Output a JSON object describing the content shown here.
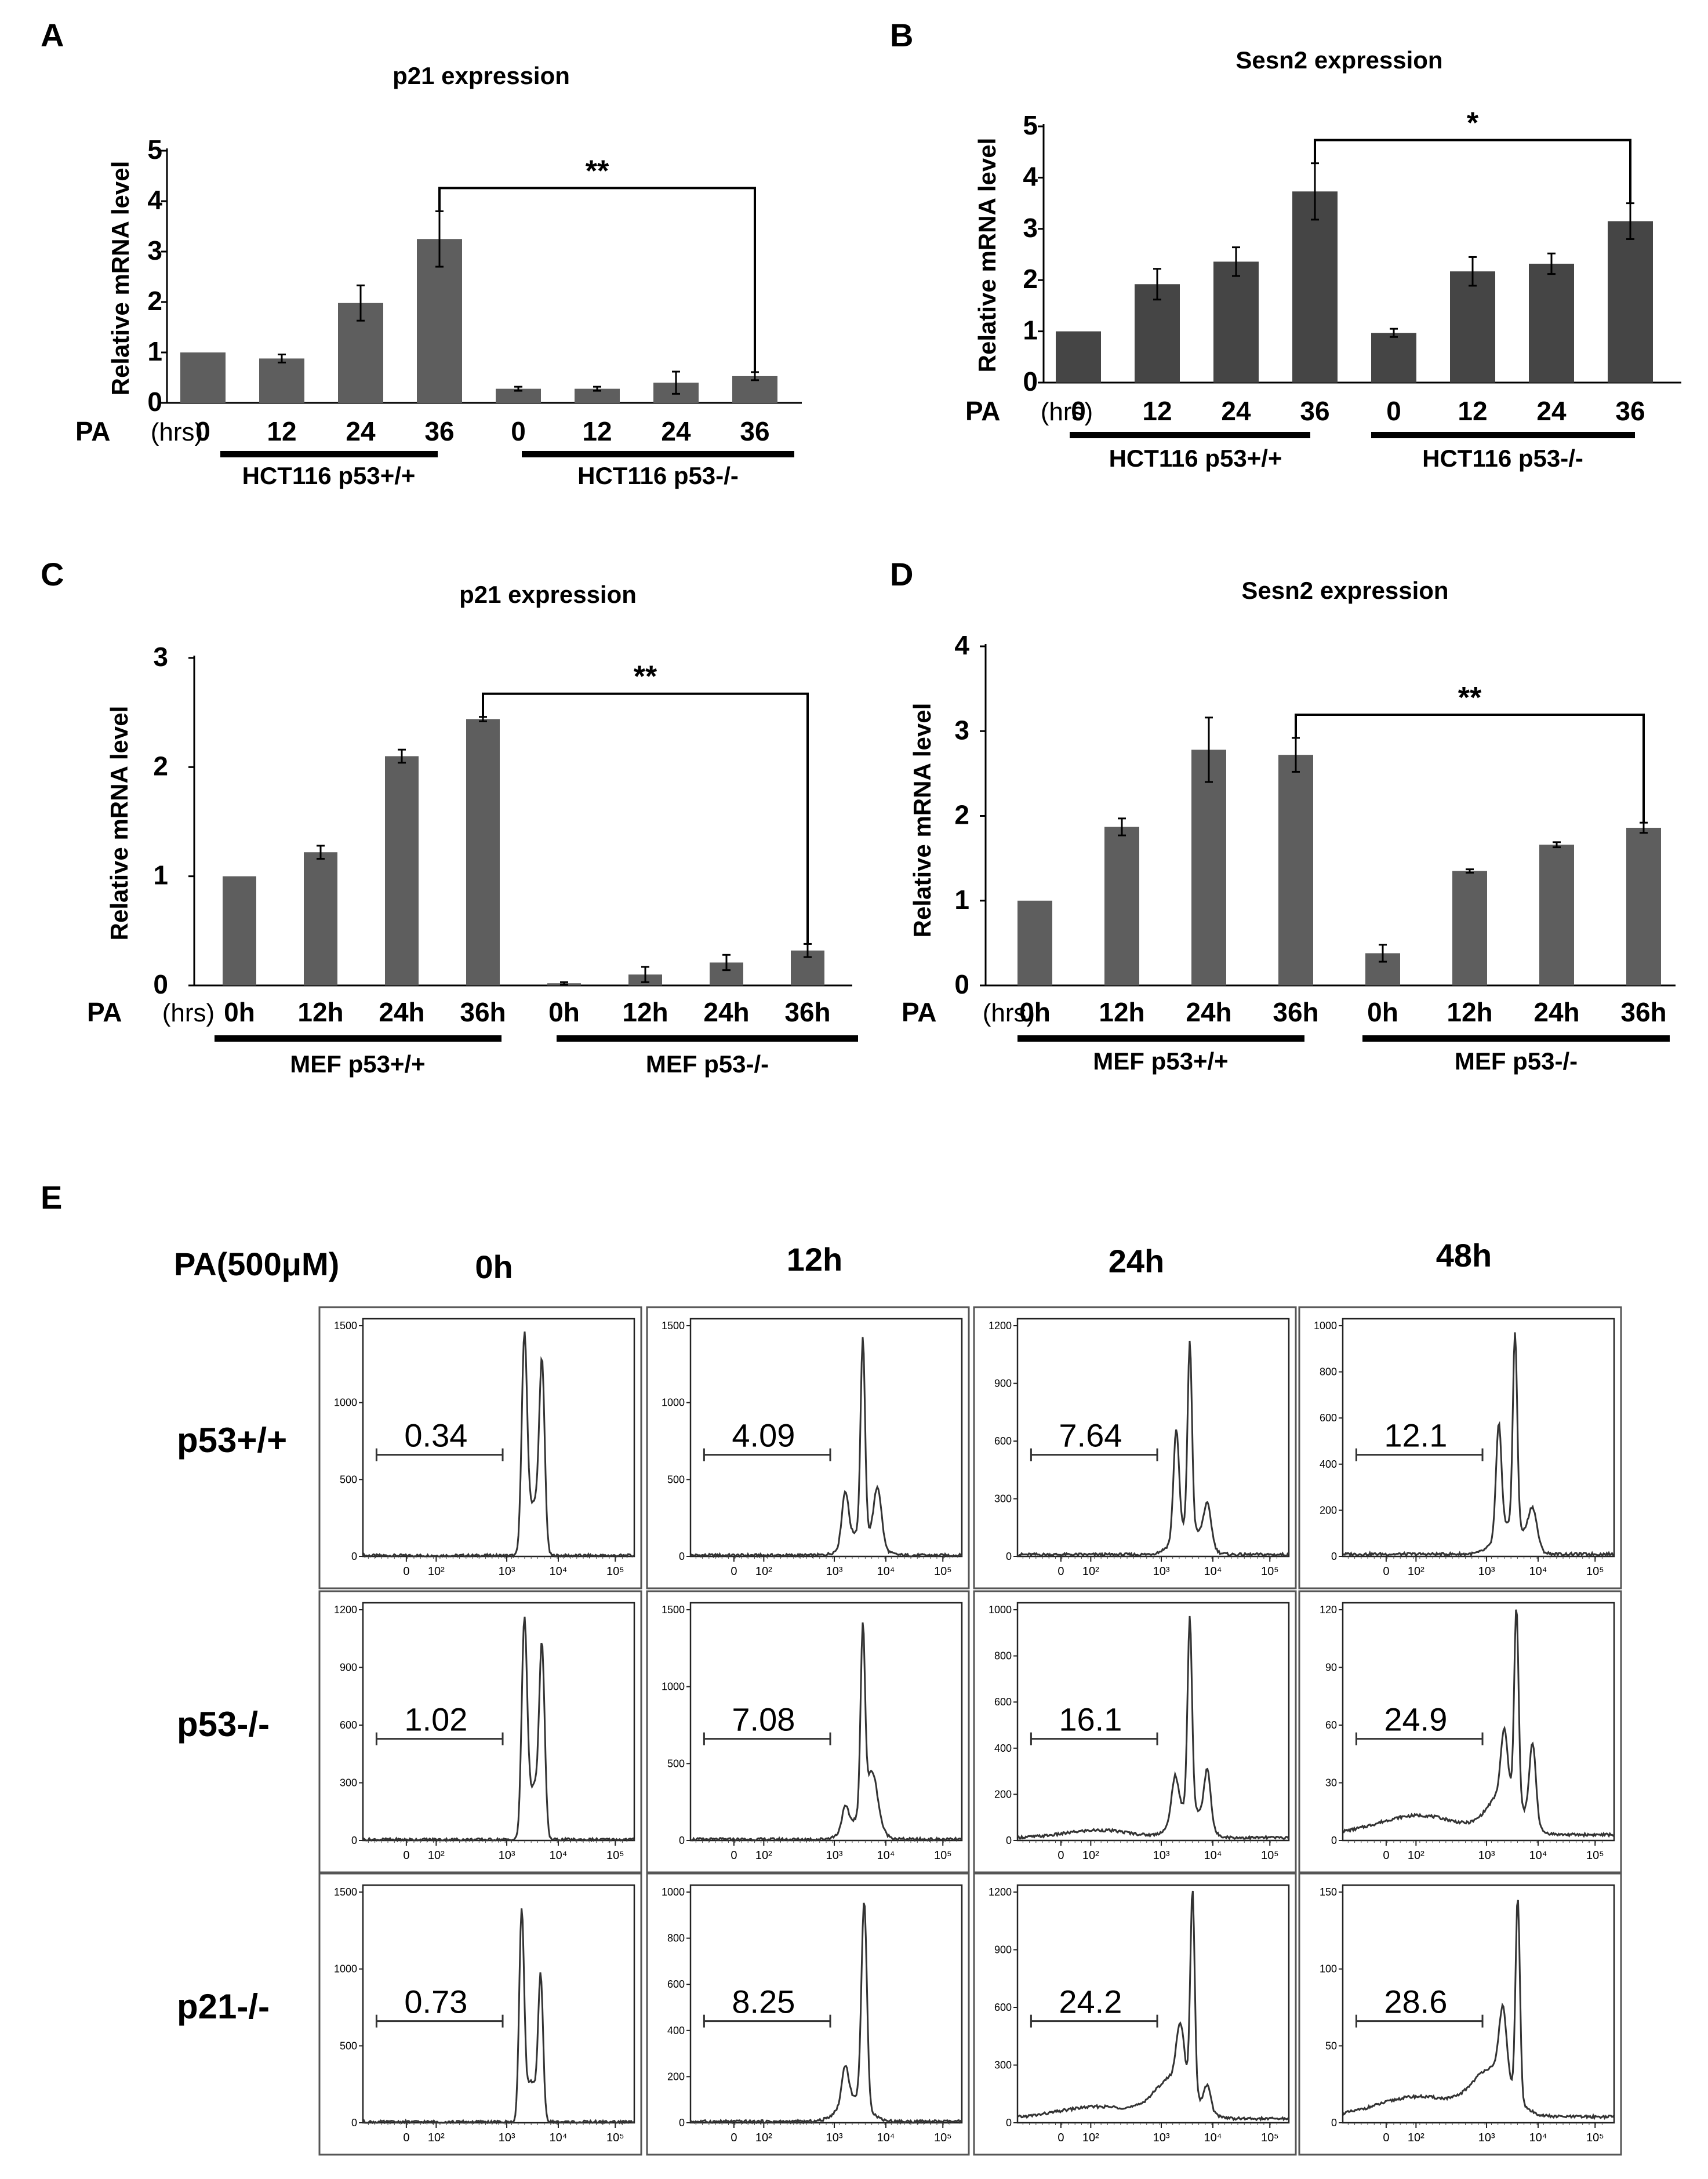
{
  "panel_letters": [
    "A",
    "B",
    "C",
    "D",
    "E"
  ],
  "colors": {
    "bar": "#5e5e5e",
    "bar_dark": "#454545",
    "ink": "#000000",
    "hist_line": "#333333"
  },
  "chart_data": [
    {
      "id": "A",
      "type": "bar",
      "title": "p21 expression",
      "ylabel": "Relative mRNA level",
      "ylim": [
        0,
        5
      ],
      "yticks": [
        "0",
        "1",
        "2",
        "3",
        "4",
        "5"
      ],
      "treatment_label": "PA",
      "unit_label": "(hrs)",
      "categories": [
        "0",
        "12",
        "24",
        "36",
        "0",
        "12",
        "24",
        "36"
      ],
      "groups": [
        "HCT116 p53+/+",
        "HCT116 p53-/-"
      ],
      "series": [
        {
          "name": "Relative mRNA level",
          "values": [
            1.0,
            0.88,
            1.98,
            3.25,
            0.28,
            0.28,
            0.4,
            0.53
          ],
          "errors": [
            0,
            0.08,
            0.35,
            0.55,
            0.04,
            0.04,
            0.22,
            0.08
          ]
        }
      ],
      "significance": {
        "label": "**",
        "from_index": 3,
        "to_index": 7
      }
    },
    {
      "id": "B",
      "type": "bar",
      "title": "Sesn2 expression",
      "ylabel": "Relative mRNA level",
      "ylim": [
        0,
        5
      ],
      "yticks": [
        "0",
        "1",
        "2",
        "3",
        "4",
        "5"
      ],
      "treatment_label": "PA",
      "unit_label": "(hrs)",
      "categories": [
        "0",
        "12",
        "24",
        "36",
        "0",
        "12",
        "24",
        "36"
      ],
      "groups": [
        "HCT116 p53+/+",
        "HCT116 p53-/-"
      ],
      "series": [
        {
          "name": "Relative mRNA level",
          "values": [
            1.0,
            1.92,
            2.36,
            3.73,
            0.97,
            2.17,
            2.32,
            3.15
          ],
          "errors": [
            0,
            0.3,
            0.28,
            0.55,
            0.08,
            0.28,
            0.2,
            0.35
          ]
        }
      ],
      "significance": {
        "label": "*",
        "from_index": 3,
        "to_index": 7
      }
    },
    {
      "id": "C",
      "type": "bar",
      "title": "p21 expression",
      "ylabel": "Relative mRNA level",
      "ylim": [
        0,
        3
      ],
      "yticks": [
        "0",
        "1",
        "2",
        "3"
      ],
      "treatment_label": "PA",
      "unit_label": "(hrs)",
      "categories": [
        "0h",
        "12h",
        "24h",
        "36h",
        "0h",
        "12h",
        "24h",
        "36h"
      ],
      "groups": [
        "MEF p53+/+",
        "MEF p53-/-"
      ],
      "series": [
        {
          "name": "Relative mRNA level",
          "values": [
            1.0,
            1.22,
            2.1,
            2.44,
            0.02,
            0.1,
            0.21,
            0.32
          ],
          "errors": [
            0,
            0.06,
            0.06,
            0.02,
            0.01,
            0.07,
            0.07,
            0.06
          ]
        }
      ],
      "significance": {
        "label": "**",
        "from_index": 3,
        "to_index": 7
      }
    },
    {
      "id": "D",
      "type": "bar",
      "title": "Sesn2 expression",
      "ylabel": "Relative mRNA level",
      "ylim": [
        0,
        4
      ],
      "yticks": [
        "0",
        "1",
        "2",
        "3",
        "4"
      ],
      "treatment_label": "PA",
      "unit_label": "(hrs)",
      "categories": [
        "0h",
        "12h",
        "24h",
        "36h",
        "0h",
        "12h",
        "24h",
        "36h"
      ],
      "groups": [
        "MEF p53+/+",
        "MEF p53-/-"
      ],
      "series": [
        {
          "name": "Relative mRNA level",
          "values": [
            1.0,
            1.87,
            2.78,
            2.72,
            0.38,
            1.35,
            1.66,
            1.86
          ],
          "errors": [
            0,
            0.1,
            0.38,
            0.2,
            0.1,
            0.02,
            0.03,
            0.06
          ]
        }
      ],
      "significance": {
        "label": "**",
        "from_index": 3,
        "to_index": 7
      }
    },
    {
      "id": "E",
      "type": "histogram-grid",
      "treatment_label": "PA(500μM)",
      "columns": [
        "0h",
        "12h",
        "24h",
        "48h"
      ],
      "rows": [
        "p53+/+",
        "p53-/-",
        "p21-/-"
      ],
      "x_tick_labels": [
        "0",
        "10²",
        "10³",
        "10⁴",
        "10⁵"
      ],
      "cells": [
        {
          "row": 0,
          "col": 0,
          "ymax": 1500,
          "yticks": [
            0,
            500,
            1000,
            1500
          ],
          "gate": "0.34",
          "shape": "p1",
          "peak_height": 0.97
        },
        {
          "row": 0,
          "col": 1,
          "ymax": 1500,
          "yticks": [
            0,
            500,
            1000,
            1500
          ],
          "gate": "4.09",
          "shape": "p2",
          "peak_height": 0.95
        },
        {
          "row": 0,
          "col": 2,
          "ymax": 1200,
          "yticks": [
            0,
            300,
            600,
            900,
            1200
          ],
          "gate": "7.64",
          "shape": "p3",
          "peak_height": 0.93
        },
        {
          "row": 0,
          "col": 3,
          "ymax": 1000,
          "yticks": [
            0,
            200,
            400,
            600,
            800,
            1000
          ],
          "gate": "12.1",
          "shape": "p4",
          "peak_height": 0.97
        },
        {
          "row": 1,
          "col": 0,
          "ymax": 1200,
          "yticks": [
            0,
            300,
            600,
            900,
            1200
          ],
          "gate": "1.02",
          "shape": "p1",
          "peak_height": 0.97
        },
        {
          "row": 1,
          "col": 1,
          "ymax": 1500,
          "yticks": [
            0,
            500,
            1000,
            1500
          ],
          "gate": "7.08",
          "shape": "q2",
          "peak_height": 0.95
        },
        {
          "row": 1,
          "col": 2,
          "ymax": 1000,
          "yticks": [
            0,
            200,
            400,
            600,
            800,
            1000
          ],
          "gate": "16.1",
          "shape": "q3",
          "peak_height": 0.97
        },
        {
          "row": 1,
          "col": 3,
          "ymax": 120,
          "yticks": [
            0,
            30,
            60,
            90,
            120
          ],
          "gate": "24.9",
          "shape": "q4",
          "peak_height": 1.0
        },
        {
          "row": 2,
          "col": 0,
          "ymax": 1500,
          "yticks": [
            0,
            500,
            1000,
            1500
          ],
          "gate": "0.73",
          "shape": "r1",
          "peak_height": 0.93
        },
        {
          "row": 2,
          "col": 1,
          "ymax": 1000,
          "yticks": [
            0,
            200,
            400,
            600,
            800,
            1000
          ],
          "gate": "8.25",
          "shape": "r2",
          "peak_height": 0.95
        },
        {
          "row": 2,
          "col": 2,
          "ymax": 1200,
          "yticks": [
            0,
            300,
            600,
            900,
            1200
          ],
          "gate": "24.2",
          "shape": "r3",
          "peak_height": 1.0
        },
        {
          "row": 2,
          "col": 3,
          "ymax": 150,
          "yticks": [
            0,
            50,
            100,
            150
          ],
          "gate": "28.6",
          "shape": "r4",
          "peak_height": 0.97
        }
      ]
    }
  ]
}
